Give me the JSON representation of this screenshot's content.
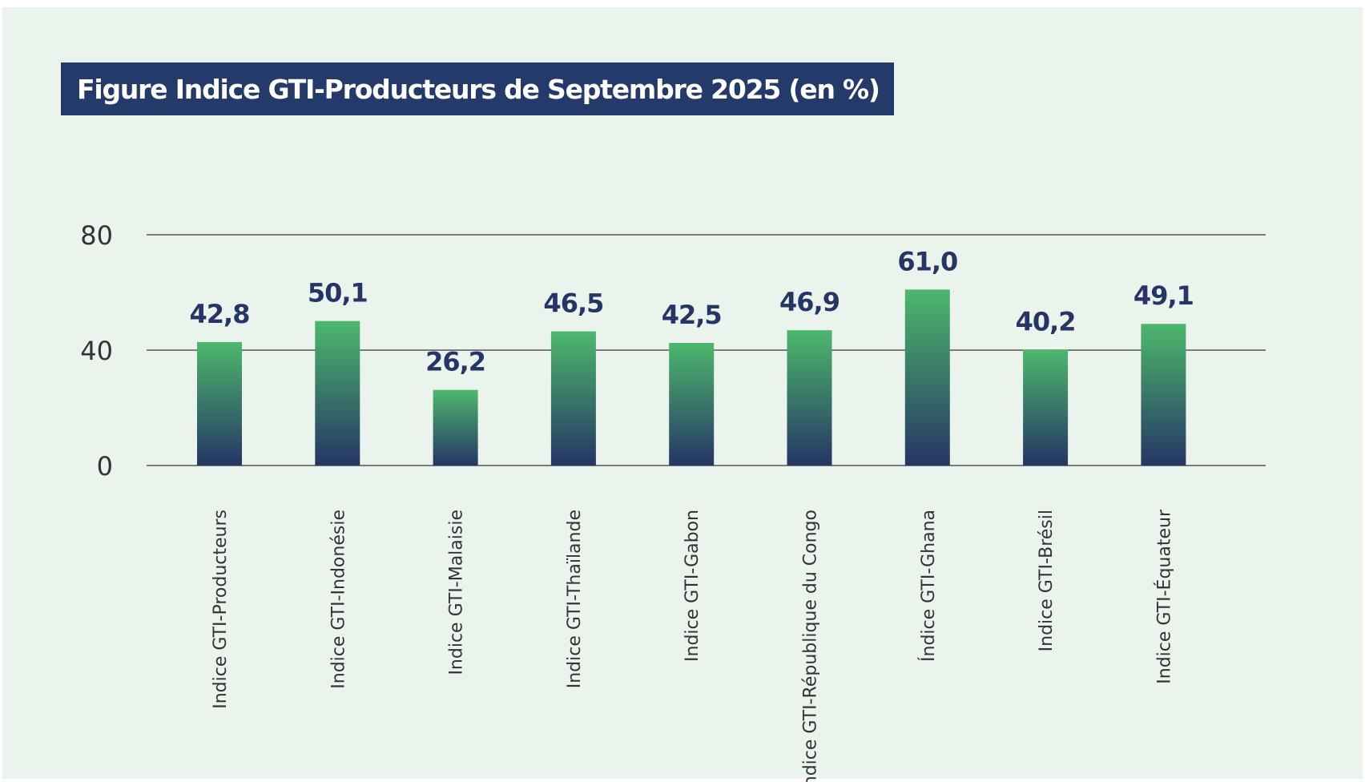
{
  "title": "Figure Indice GTI-Producteurs  de Septembre 2025 (en %)",
  "colors": {
    "background": "#eaf4ec",
    "title_bg": "#243a6b",
    "bar_top": "#4db86c",
    "bar_bottom": "#253565",
    "value_text": "#253565",
    "gridline": "#555555"
  },
  "chart_data": {
    "type": "bar",
    "title": "Figure Indice GTI-Producteurs  de Septembre 2025 (en %)",
    "categories": [
      "Indice GTI-Producteurs",
      "Indice GTI-Indonésie",
      "Indice GTI-Malaisie",
      "Indice GTI-Thaïlande",
      "Indice GTI-Gabon",
      "Indice GTI-République du Congo",
      "Índice GTI-Ghana",
      "Indice GTI-Brésil",
      "Indice GTI-Équateur"
    ],
    "values": [
      42.8,
      50.1,
      26.2,
      46.5,
      42.5,
      46.9,
      61.0,
      40.2,
      49.1
    ],
    "value_labels": [
      "42,8",
      "50,1",
      "26,2",
      "46,5",
      "42,5",
      "46,9",
      "61,0",
      "40,2",
      "49,1"
    ],
    "yticks": [
      0,
      40,
      80
    ],
    "ytick_labels": [
      "0",
      "40",
      "80"
    ],
    "ylim": [
      0,
      80
    ],
    "xlabel": "",
    "ylabel": "",
    "grid": true,
    "legend": "none"
  }
}
